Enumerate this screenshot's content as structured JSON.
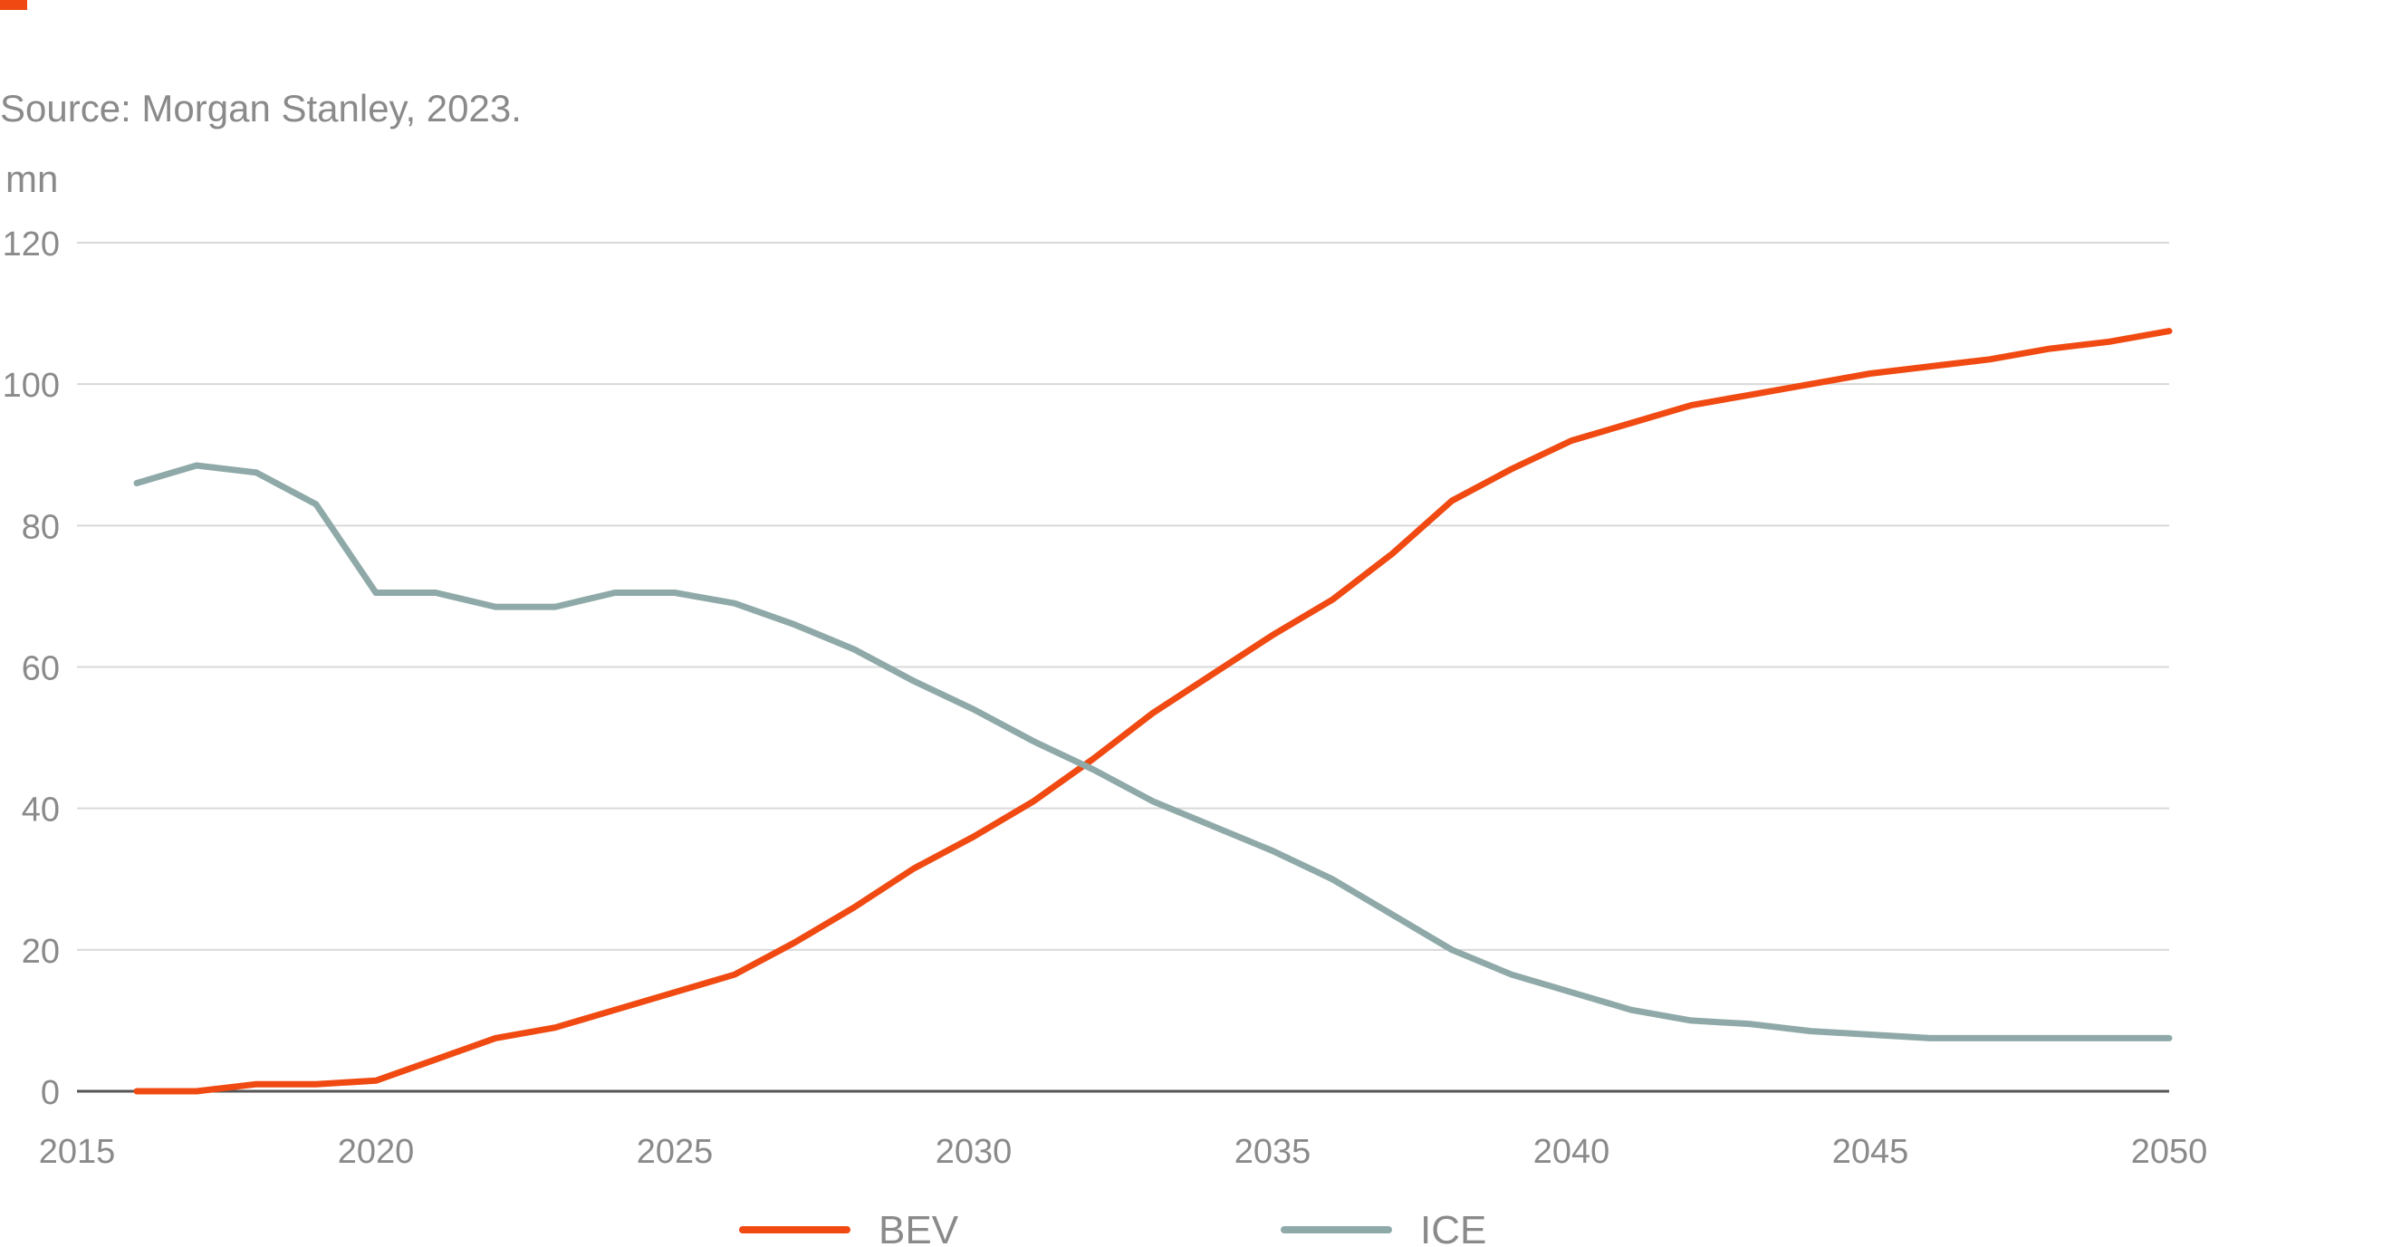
{
  "header": {
    "source": "Source: Morgan Stanley, 2023."
  },
  "colors": {
    "accent": "#f04a12",
    "bev": "#f04a12",
    "ice": "#8fa9a9",
    "grid": "#d9d9d9",
    "axis": "#555555",
    "text": "#8a8a8a"
  },
  "chart_data": {
    "type": "line",
    "title": "",
    "ylabel": "mn",
    "xlabel": "",
    "xlim": [
      2015,
      2050
    ],
    "ylim": [
      0,
      120
    ],
    "x_ticks": [
      2015,
      2020,
      2025,
      2030,
      2035,
      2040,
      2045,
      2050
    ],
    "y_ticks": [
      0,
      20,
      40,
      60,
      80,
      100,
      120
    ],
    "grid": true,
    "legend_position": "bottom",
    "series": [
      {
        "name": "BEV",
        "color": "#f04a12",
        "points": [
          [
            2016,
            0
          ],
          [
            2017,
            0
          ],
          [
            2018,
            1
          ],
          [
            2019,
            1
          ],
          [
            2020,
            1.5
          ],
          [
            2021,
            4.5
          ],
          [
            2022,
            7.5
          ],
          [
            2023,
            9
          ],
          [
            2024,
            11.5
          ],
          [
            2025,
            14
          ],
          [
            2026,
            16.5
          ],
          [
            2027,
            21
          ],
          [
            2028,
            26
          ],
          [
            2029,
            31.5
          ],
          [
            2030,
            36
          ],
          [
            2031,
            41
          ],
          [
            2032,
            47
          ],
          [
            2033,
            53.5
          ],
          [
            2034,
            59
          ],
          [
            2035,
            64.5
          ],
          [
            2036,
            69.5
          ],
          [
            2037,
            76
          ],
          [
            2038,
            83.5
          ],
          [
            2039,
            88
          ],
          [
            2040,
            92
          ],
          [
            2041,
            94.5
          ],
          [
            2042,
            97
          ],
          [
            2043,
            98.5
          ],
          [
            2044,
            100
          ],
          [
            2045,
            101.5
          ],
          [
            2046,
            102.5
          ],
          [
            2047,
            103.5
          ],
          [
            2048,
            105
          ],
          [
            2049,
            106
          ],
          [
            2050,
            107.5
          ]
        ]
      },
      {
        "name": "ICE",
        "color": "#8fa9a9",
        "points": [
          [
            2016,
            86
          ],
          [
            2017,
            88.5
          ],
          [
            2018,
            87.5
          ],
          [
            2019,
            83
          ],
          [
            2020,
            70.5
          ],
          [
            2021,
            70.5
          ],
          [
            2022,
            68.5
          ],
          [
            2023,
            68.5
          ],
          [
            2024,
            70.5
          ],
          [
            2025,
            70.5
          ],
          [
            2026,
            69
          ],
          [
            2027,
            66
          ],
          [
            2028,
            62.5
          ],
          [
            2029,
            58
          ],
          [
            2030,
            54
          ],
          [
            2031,
            49.5
          ],
          [
            2032,
            45.5
          ],
          [
            2033,
            41
          ],
          [
            2034,
            37.5
          ],
          [
            2035,
            34
          ],
          [
            2036,
            30
          ],
          [
            2037,
            25
          ],
          [
            2038,
            20
          ],
          [
            2039,
            16.5
          ],
          [
            2040,
            14
          ],
          [
            2041,
            11.5
          ],
          [
            2042,
            10
          ],
          [
            2043,
            9.5
          ],
          [
            2044,
            8.5
          ],
          [
            2045,
            8
          ],
          [
            2046,
            7.5
          ],
          [
            2047,
            7.5
          ],
          [
            2048,
            7.5
          ],
          [
            2049,
            7.5
          ],
          [
            2050,
            7.5
          ]
        ]
      }
    ]
  }
}
